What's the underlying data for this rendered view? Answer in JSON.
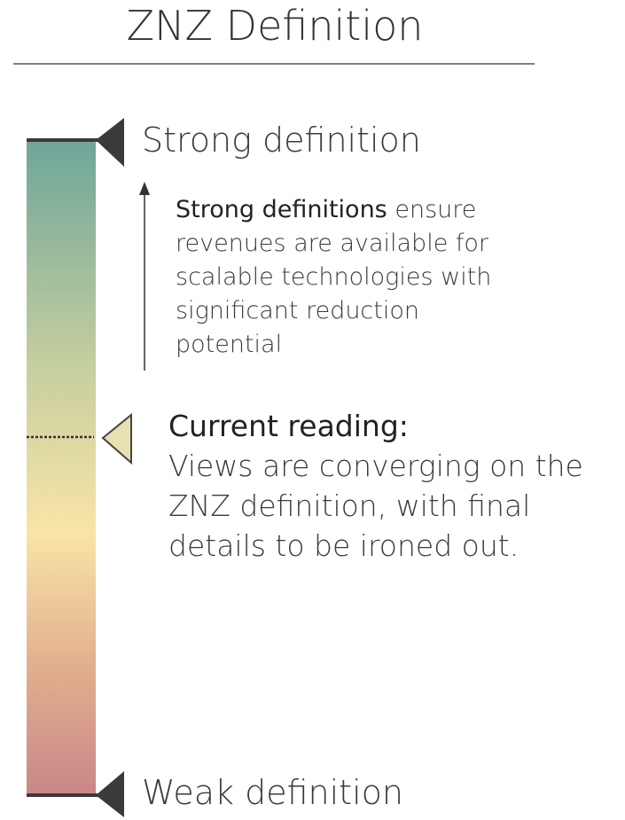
{
  "title": "ZNZ Definition",
  "scale": {
    "top_label": "Strong definition",
    "bottom_label": "Weak definition"
  },
  "description": {
    "emphasis": "Strong definitions",
    "text": "ensure revenues are available for scalable technologies with significant reduction potential"
  },
  "current_reading": {
    "heading": "Current reading:",
    "text": "Views are converging on the ZNZ definition, with final details to be ironed out."
  }
}
